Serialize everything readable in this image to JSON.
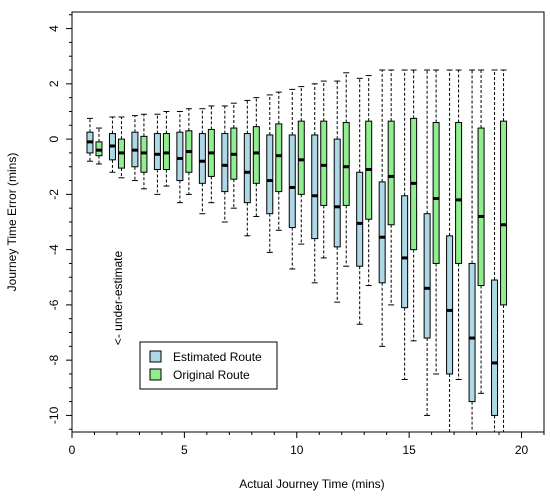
{
  "chart_data": {
    "type": "boxplot",
    "xlabel": "Actual Journey Time (mins)",
    "ylabel": "Journey Time Error (mins)",
    "annotation": "<- under-estimate",
    "xlim": [
      0,
      21
    ],
    "ylim": [
      -10.6,
      4.6
    ],
    "xticks": [
      0,
      5,
      10,
      15,
      20
    ],
    "yticks": [
      -10,
      -8,
      -6,
      -4,
      -2,
      0,
      2,
      4
    ],
    "legend_position": "bottom-left",
    "series": [
      {
        "name": "Estimated Route",
        "color": "#add8e6",
        "boxes": [
          {
            "x": 1.0,
            "lower_whisker": -0.8,
            "q1": -0.5,
            "median": -0.1,
            "q3": 0.25,
            "upper_whisker": 0.75
          },
          {
            "x": 2.0,
            "lower_whisker": -1.2,
            "q1": -0.75,
            "median": -0.25,
            "q3": 0.2,
            "upper_whisker": 0.8
          },
          {
            "x": 3.0,
            "lower_whisker": -1.5,
            "q1": -1.0,
            "median": -0.4,
            "q3": 0.25,
            "upper_whisker": 0.85
          },
          {
            "x": 4.0,
            "lower_whisker": -2.0,
            "q1": -1.1,
            "median": -0.55,
            "q3": 0.2,
            "upper_whisker": 0.9
          },
          {
            "x": 5.0,
            "lower_whisker": -2.3,
            "q1": -1.5,
            "median": -0.7,
            "q3": 0.25,
            "upper_whisker": 1.0
          },
          {
            "x": 6.0,
            "lower_whisker": -2.7,
            "q1": -1.6,
            "median": -0.8,
            "q3": 0.2,
            "upper_whisker": 1.1
          },
          {
            "x": 7.0,
            "lower_whisker": -3.0,
            "q1": -1.9,
            "median": -0.95,
            "q3": 0.2,
            "upper_whisker": 1.2
          },
          {
            "x": 8.0,
            "lower_whisker": -3.5,
            "q1": -2.3,
            "median": -1.2,
            "q3": 0.2,
            "upper_whisker": 1.4
          },
          {
            "x": 9.0,
            "lower_whisker": -4.1,
            "q1": -2.7,
            "median": -1.5,
            "q3": 0.15,
            "upper_whisker": 1.6
          },
          {
            "x": 10.0,
            "lower_whisker": -4.7,
            "q1": -3.2,
            "median": -1.75,
            "q3": 0.15,
            "upper_whisker": 1.8
          },
          {
            "x": 11.0,
            "lower_whisker": -5.2,
            "q1": -3.6,
            "median": -2.05,
            "q3": 0.15,
            "upper_whisker": 2.0
          },
          {
            "x": 12.0,
            "lower_whisker": -5.9,
            "q1": -3.9,
            "median": -2.45,
            "q3": 0.0,
            "upper_whisker": 2.1
          },
          {
            "x": 13.0,
            "lower_whisker": -6.7,
            "q1": -4.6,
            "median": -3.05,
            "q3": -1.2,
            "upper_whisker": 2.2
          },
          {
            "x": 14.0,
            "lower_whisker": -7.5,
            "q1": -5.2,
            "median": -3.55,
            "q3": -1.55,
            "upper_whisker": 2.5
          },
          {
            "x": 15.0,
            "lower_whisker": -8.7,
            "q1": -6.1,
            "median": -4.3,
            "q3": -2.05,
            "upper_whisker": 2.5
          },
          {
            "x": 16.0,
            "lower_whisker": -10.0,
            "q1": -7.2,
            "median": -5.4,
            "q3": -2.7,
            "upper_whisker": 2.5
          },
          {
            "x": 17.0,
            "lower_whisker": -10.6,
            "q1": -8.5,
            "median": -6.2,
            "q3": -3.5,
            "upper_whisker": 2.5
          },
          {
            "x": 18.0,
            "lower_whisker": -10.6,
            "q1": -9.5,
            "median": -7.2,
            "q3": -4.5,
            "upper_whisker": 2.5
          },
          {
            "x": 19.0,
            "lower_whisker": -10.6,
            "q1": -10.0,
            "median": -8.1,
            "q3": -5.1,
            "upper_whisker": 2.5
          }
        ]
      },
      {
        "name": "Original Route",
        "color": "#90ee90",
        "boxes": [
          {
            "x": 1.0,
            "lower_whisker": -0.9,
            "q1": -0.6,
            "median": -0.4,
            "q3": -0.1,
            "upper_whisker": 0.4
          },
          {
            "x": 2.0,
            "lower_whisker": -1.4,
            "q1": -1.05,
            "median": -0.5,
            "q3": 0.0,
            "upper_whisker": 0.8
          },
          {
            "x": 3.0,
            "lower_whisker": -1.8,
            "q1": -1.2,
            "median": -0.5,
            "q3": 0.1,
            "upper_whisker": 0.9
          },
          {
            "x": 4.0,
            "lower_whisker": -1.7,
            "q1": -1.1,
            "median": -0.5,
            "q3": 0.2,
            "upper_whisker": 1.0
          },
          {
            "x": 5.0,
            "lower_whisker": -2.0,
            "q1": -1.2,
            "median": -0.45,
            "q3": 0.3,
            "upper_whisker": 1.1
          },
          {
            "x": 6.0,
            "lower_whisker": -2.3,
            "q1": -1.35,
            "median": -0.5,
            "q3": 0.35,
            "upper_whisker": 1.2
          },
          {
            "x": 7.0,
            "lower_whisker": -2.5,
            "q1": -1.45,
            "median": -0.55,
            "q3": 0.4,
            "upper_whisker": 1.3
          },
          {
            "x": 8.0,
            "lower_whisker": -2.8,
            "q1": -1.6,
            "median": -0.5,
            "q3": 0.45,
            "upper_whisker": 1.5
          },
          {
            "x": 9.0,
            "lower_whisker": -3.3,
            "q1": -1.9,
            "median": -0.6,
            "q3": 0.55,
            "upper_whisker": 1.7
          },
          {
            "x": 10.0,
            "lower_whisker": -3.8,
            "q1": -2.0,
            "median": -0.75,
            "q3": 0.65,
            "upper_whisker": 1.9
          },
          {
            "x": 11.0,
            "lower_whisker": -4.3,
            "q1": -2.4,
            "median": -0.95,
            "q3": 0.65,
            "upper_whisker": 2.1
          },
          {
            "x": 12.0,
            "lower_whisker": -4.6,
            "q1": -2.4,
            "median": -1.0,
            "q3": 0.6,
            "upper_whisker": 2.4
          },
          {
            "x": 13.0,
            "lower_whisker": -5.3,
            "q1": -2.9,
            "median": -1.1,
            "q3": 0.65,
            "upper_whisker": 2.3
          },
          {
            "x": 14.0,
            "lower_whisker": -6.0,
            "q1": -3.1,
            "median": -1.35,
            "q3": 0.65,
            "upper_whisker": 2.5
          },
          {
            "x": 15.0,
            "lower_whisker": -7.3,
            "q1": -4.0,
            "median": -1.6,
            "q3": 0.75,
            "upper_whisker": 2.5
          },
          {
            "x": 16.0,
            "lower_whisker": -8.5,
            "q1": -4.5,
            "median": -2.15,
            "q3": 0.6,
            "upper_whisker": 2.5
          },
          {
            "x": 17.0,
            "lower_whisker": -8.7,
            "q1": -4.5,
            "median": -2.2,
            "q3": 0.6,
            "upper_whisker": 2.5
          },
          {
            "x": 18.0,
            "lower_whisker": -9.2,
            "q1": -5.3,
            "median": -2.8,
            "q3": 0.4,
            "upper_whisker": 2.5
          },
          {
            "x": 19.0,
            "lower_whisker": -10.6,
            "q1": -6.0,
            "median": -3.1,
            "q3": 0.65,
            "upper_whisker": 2.5
          }
        ]
      }
    ]
  }
}
